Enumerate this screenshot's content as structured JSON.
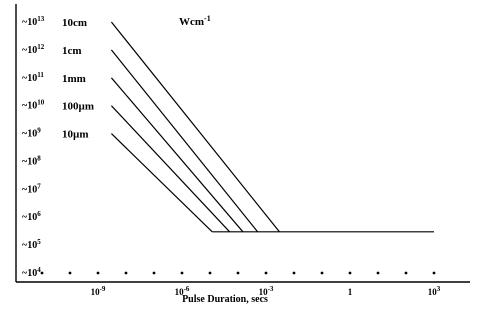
{
  "chart_data": {
    "type": "line",
    "title": "",
    "unit_label": "Wcm",
    "unit_exponent": "-1",
    "xlabel": "Pulse Duration,  secs",
    "ylabel": "",
    "x_scale": "log",
    "y_scale": "log",
    "xlim": [
      1e-12,
      10000.0
    ],
    "ylim": [
      10000.0,
      10000000000000.0
    ],
    "grid": false,
    "x_ticks": [
      {
        "value": 1e-09,
        "base": "10",
        "exp": "-9"
      },
      {
        "value": 1e-06,
        "base": "10",
        "exp": "-6"
      },
      {
        "value": 0.001,
        "base": "10",
        "exp": "-3"
      },
      {
        "value": 1,
        "base": "1",
        "exp": ""
      },
      {
        "value": 1000.0,
        "base": "10",
        "exp": "3"
      }
    ],
    "x_minor_dots": [
      1e-11,
      1e-10,
      1e-09,
      1e-08,
      1e-07,
      1e-06,
      1e-05,
      0.0001,
      0.001,
      0.01,
      0.1,
      1,
      10.0,
      100.0,
      1000.0
    ],
    "y_ticks": [
      {
        "value": 10000000000000.0,
        "prefix": "~10",
        "exp": "13"
      },
      {
        "value": 1000000000000.0,
        "prefix": "~10",
        "exp": "12"
      },
      {
        "value": 100000000000.0,
        "prefix": "~10",
        "exp": "11"
      },
      {
        "value": 10000000000.0,
        "prefix": "~10",
        "exp": "10"
      },
      {
        "value": 1000000000.0,
        "prefix": "~10",
        "exp": "9"
      },
      {
        "value": 100000000.0,
        "prefix": "~10",
        "exp": "8"
      },
      {
        "value": 10000000.0,
        "prefix": "~10",
        "exp": "7"
      },
      {
        "value": 1000000.0,
        "prefix": "~10",
        "exp": "6"
      },
      {
        "value": 100000.0,
        "prefix": "~10",
        "exp": "5"
      },
      {
        "value": 10000.0,
        "prefix": "~10",
        "exp": "4"
      }
    ],
    "series": [
      {
        "name": "10cm",
        "x": [
          3e-09,
          0.003
        ],
        "y": [
          10000000000000.0,
          300000.0
        ]
      },
      {
        "name": "1cm",
        "x": [
          3e-09,
          0.0005
        ],
        "y": [
          1000000000000.0,
          300000.0
        ]
      },
      {
        "name": "1mm",
        "x": [
          3e-09,
          0.00015
        ],
        "y": [
          100000000000.0,
          300000.0
        ]
      },
      {
        "name": "100µm",
        "x": [
          3e-09,
          5e-05
        ],
        "y": [
          10000000000.0,
          300000.0
        ]
      },
      {
        "name": "10µm",
        "x": [
          3e-09,
          1.2e-05
        ],
        "y": [
          1000000000.0,
          300000.0
        ]
      }
    ],
    "plateau": {
      "x": [
        1.2e-05,
        1000.0
      ],
      "y": [
        300000.0,
        300000.0
      ]
    }
  }
}
